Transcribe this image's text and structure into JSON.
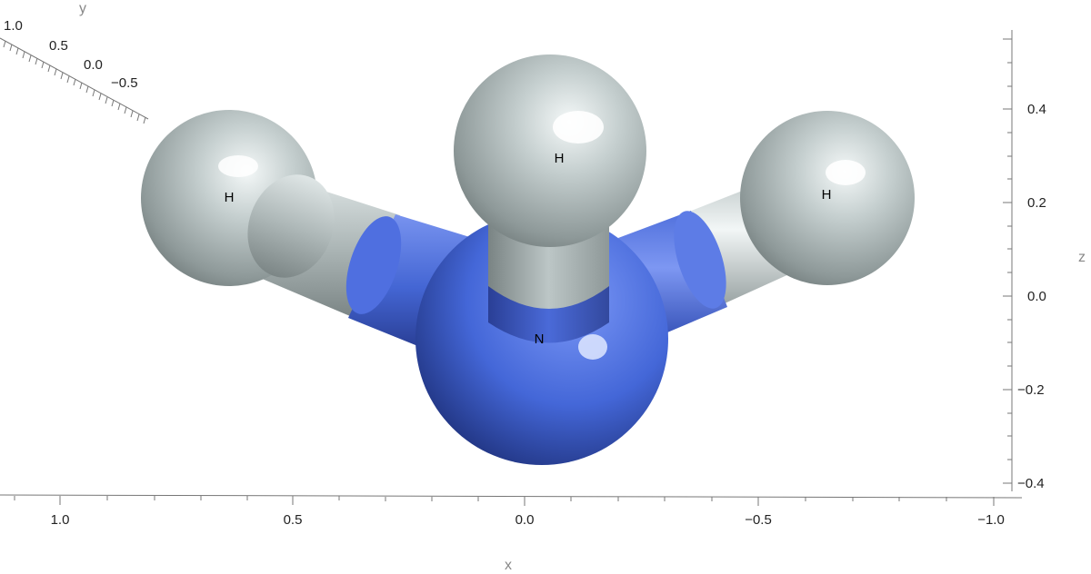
{
  "axes": {
    "x": {
      "label": "x",
      "ticks": [
        "1.0",
        "0.5",
        "0.0",
        "−0.5",
        "−1.0"
      ]
    },
    "y": {
      "label": "y",
      "ticks": [
        "1.0",
        "0.5",
        "0.0",
        "−0.5"
      ]
    },
    "z": {
      "label": "z",
      "ticks": [
        "0.4",
        "0.2",
        "0.0",
        "−0.2",
        "−0.4"
      ]
    }
  },
  "molecule": {
    "atoms": [
      {
        "id": "N",
        "label": "N",
        "element": "N"
      },
      {
        "id": "H1",
        "label": "H",
        "element": "H"
      },
      {
        "id": "H2",
        "label": "H",
        "element": "H"
      },
      {
        "id": "H3",
        "label": "H",
        "element": "H"
      }
    ],
    "bonds": [
      [
        "N",
        "H1"
      ],
      [
        "N",
        "H2"
      ],
      [
        "N",
        "H3"
      ]
    ]
  },
  "colors": {
    "nitrogen": "#4a6fe0",
    "hydrogen": "#c8d2d2",
    "axis": "#777777"
  }
}
